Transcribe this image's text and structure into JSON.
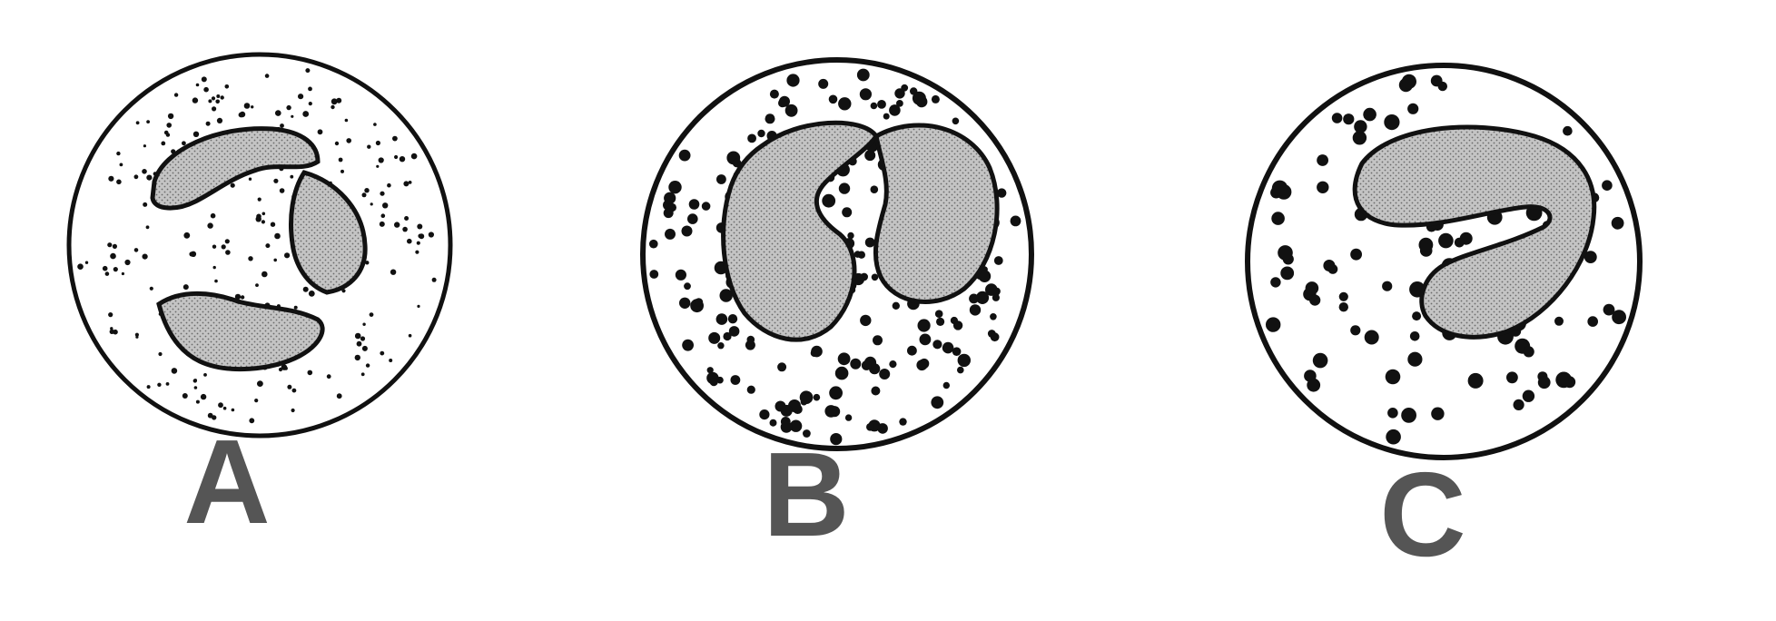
{
  "figure": {
    "background": "#ffffff",
    "ink_color": "#111111",
    "nucleus_fill": "#b9b9b9",
    "label_color": "#555555",
    "cells": [
      {
        "id": "A",
        "label": "A",
        "granule_style": "fine"
      },
      {
        "id": "B",
        "label": "B",
        "granule_style": "coarse-dense"
      },
      {
        "id": "C",
        "label": "C",
        "granule_style": "coarse-sparse"
      }
    ]
  }
}
